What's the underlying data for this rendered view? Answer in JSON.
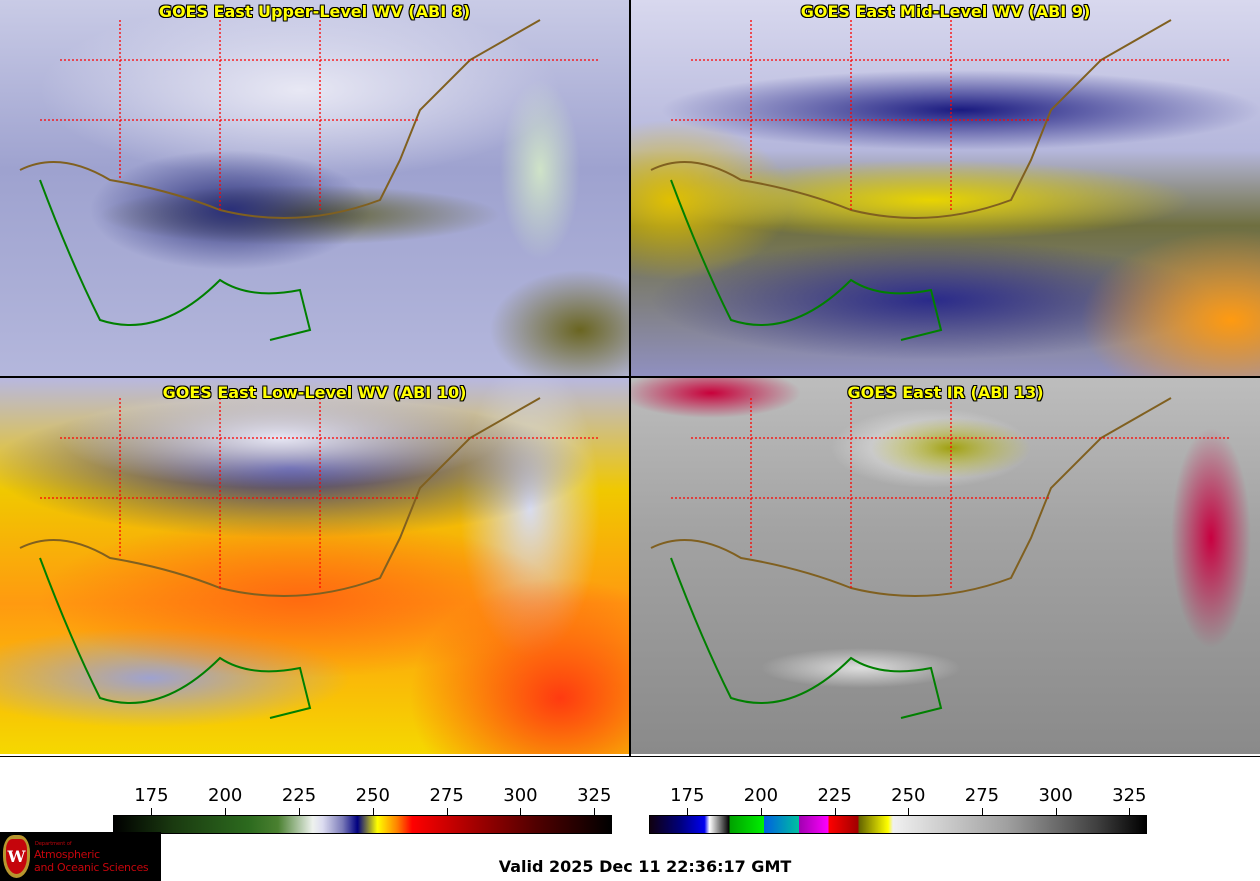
{
  "panels": [
    {
      "title": "GOES East Upper-Level WV (ABI 8)"
    },
    {
      "title": "GOES East Mid-Level WV (ABI 9)"
    },
    {
      "title": "GOES East Low-Level WV (ABI 10)"
    },
    {
      "title": "GOES East IR (ABI 13)"
    }
  ],
  "colorbars": [
    {
      "name": "water-vapor",
      "range": [
        162,
        331
      ],
      "ticks": [
        "175",
        "200",
        "225",
        "250",
        "275",
        "300",
        "325"
      ]
    },
    {
      "name": "infrared",
      "range": [
        162,
        331
      ],
      "ticks": [
        "175",
        "200",
        "225",
        "250",
        "275",
        "300",
        "325"
      ]
    }
  ],
  "logo": {
    "dept": "Department of",
    "line1": "Atmospheric",
    "line2": "and Oceanic Sciences",
    "crest_letter": "W"
  },
  "valid_time": "Valid 2025 Dec 11 22:36:17 GMT",
  "colors": {
    "title": "#ffff00",
    "state_borders": "#ff0000",
    "coastlines": "#008000",
    "logo_red": "#c5050c"
  }
}
